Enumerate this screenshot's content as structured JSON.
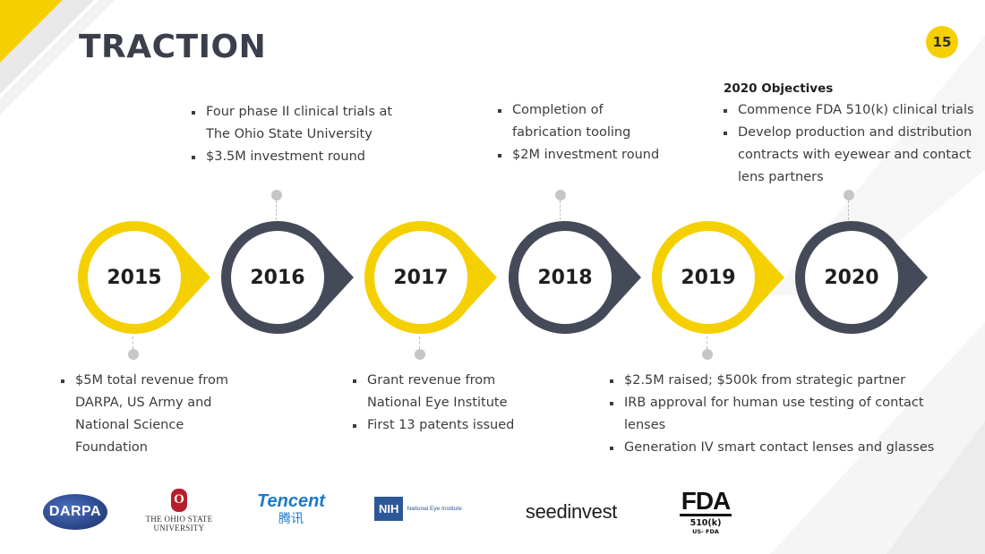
{
  "slide": {
    "title": "TRACTION",
    "page_number": "15"
  },
  "colors": {
    "accent_yellow": "#f5d000",
    "dark_ring": "#454a58",
    "text": "#3c3c3c"
  },
  "timeline": [
    {
      "year": "2015",
      "style": "yellow"
    },
    {
      "year": "2016",
      "style": "dark"
    },
    {
      "year": "2017",
      "style": "yellow"
    },
    {
      "year": "2018",
      "style": "dark"
    },
    {
      "year": "2019",
      "style": "yellow"
    },
    {
      "year": "2020",
      "style": "dark"
    }
  ],
  "notes": {
    "y2015": [
      "$5M total revenue from DARPA, US Army and National Science Foundation"
    ],
    "y2016": [
      "Four phase II clinical trials at The Ohio State University",
      "$3.5M investment round"
    ],
    "y2017": [
      "Grant revenue from National Eye Institute",
      "First 13 patents issued"
    ],
    "y2018": [
      "Completion of fabrication tooling",
      "$2M investment round"
    ],
    "y2019": [
      "$2.5M raised; $500k from strategic partner",
      "IRB approval for human use testing of contact lenses",
      "Generation IV smart contact lenses and glasses"
    ],
    "y2020": {
      "heading": "2020 Objectives",
      "items": [
        "Commence FDA 510(k) clinical trials",
        "Develop production and distribution contracts with eyewear and contact lens partners"
      ]
    }
  },
  "logos": {
    "darpa": "DARPA",
    "osu_mark": "O",
    "osu_line1": "THE OHIO STATE",
    "osu_line2": "UNIVERSITY",
    "tencent_en": "Tencent",
    "tencent_cn": "腾讯",
    "nih_mark": "NIH",
    "nih_label": "National Eye Institute",
    "seedinvest": "seedinvest",
    "fda_mark": "FDA",
    "fda_sub": "510(k)",
    "fda_sub2": "US- FDA"
  }
}
